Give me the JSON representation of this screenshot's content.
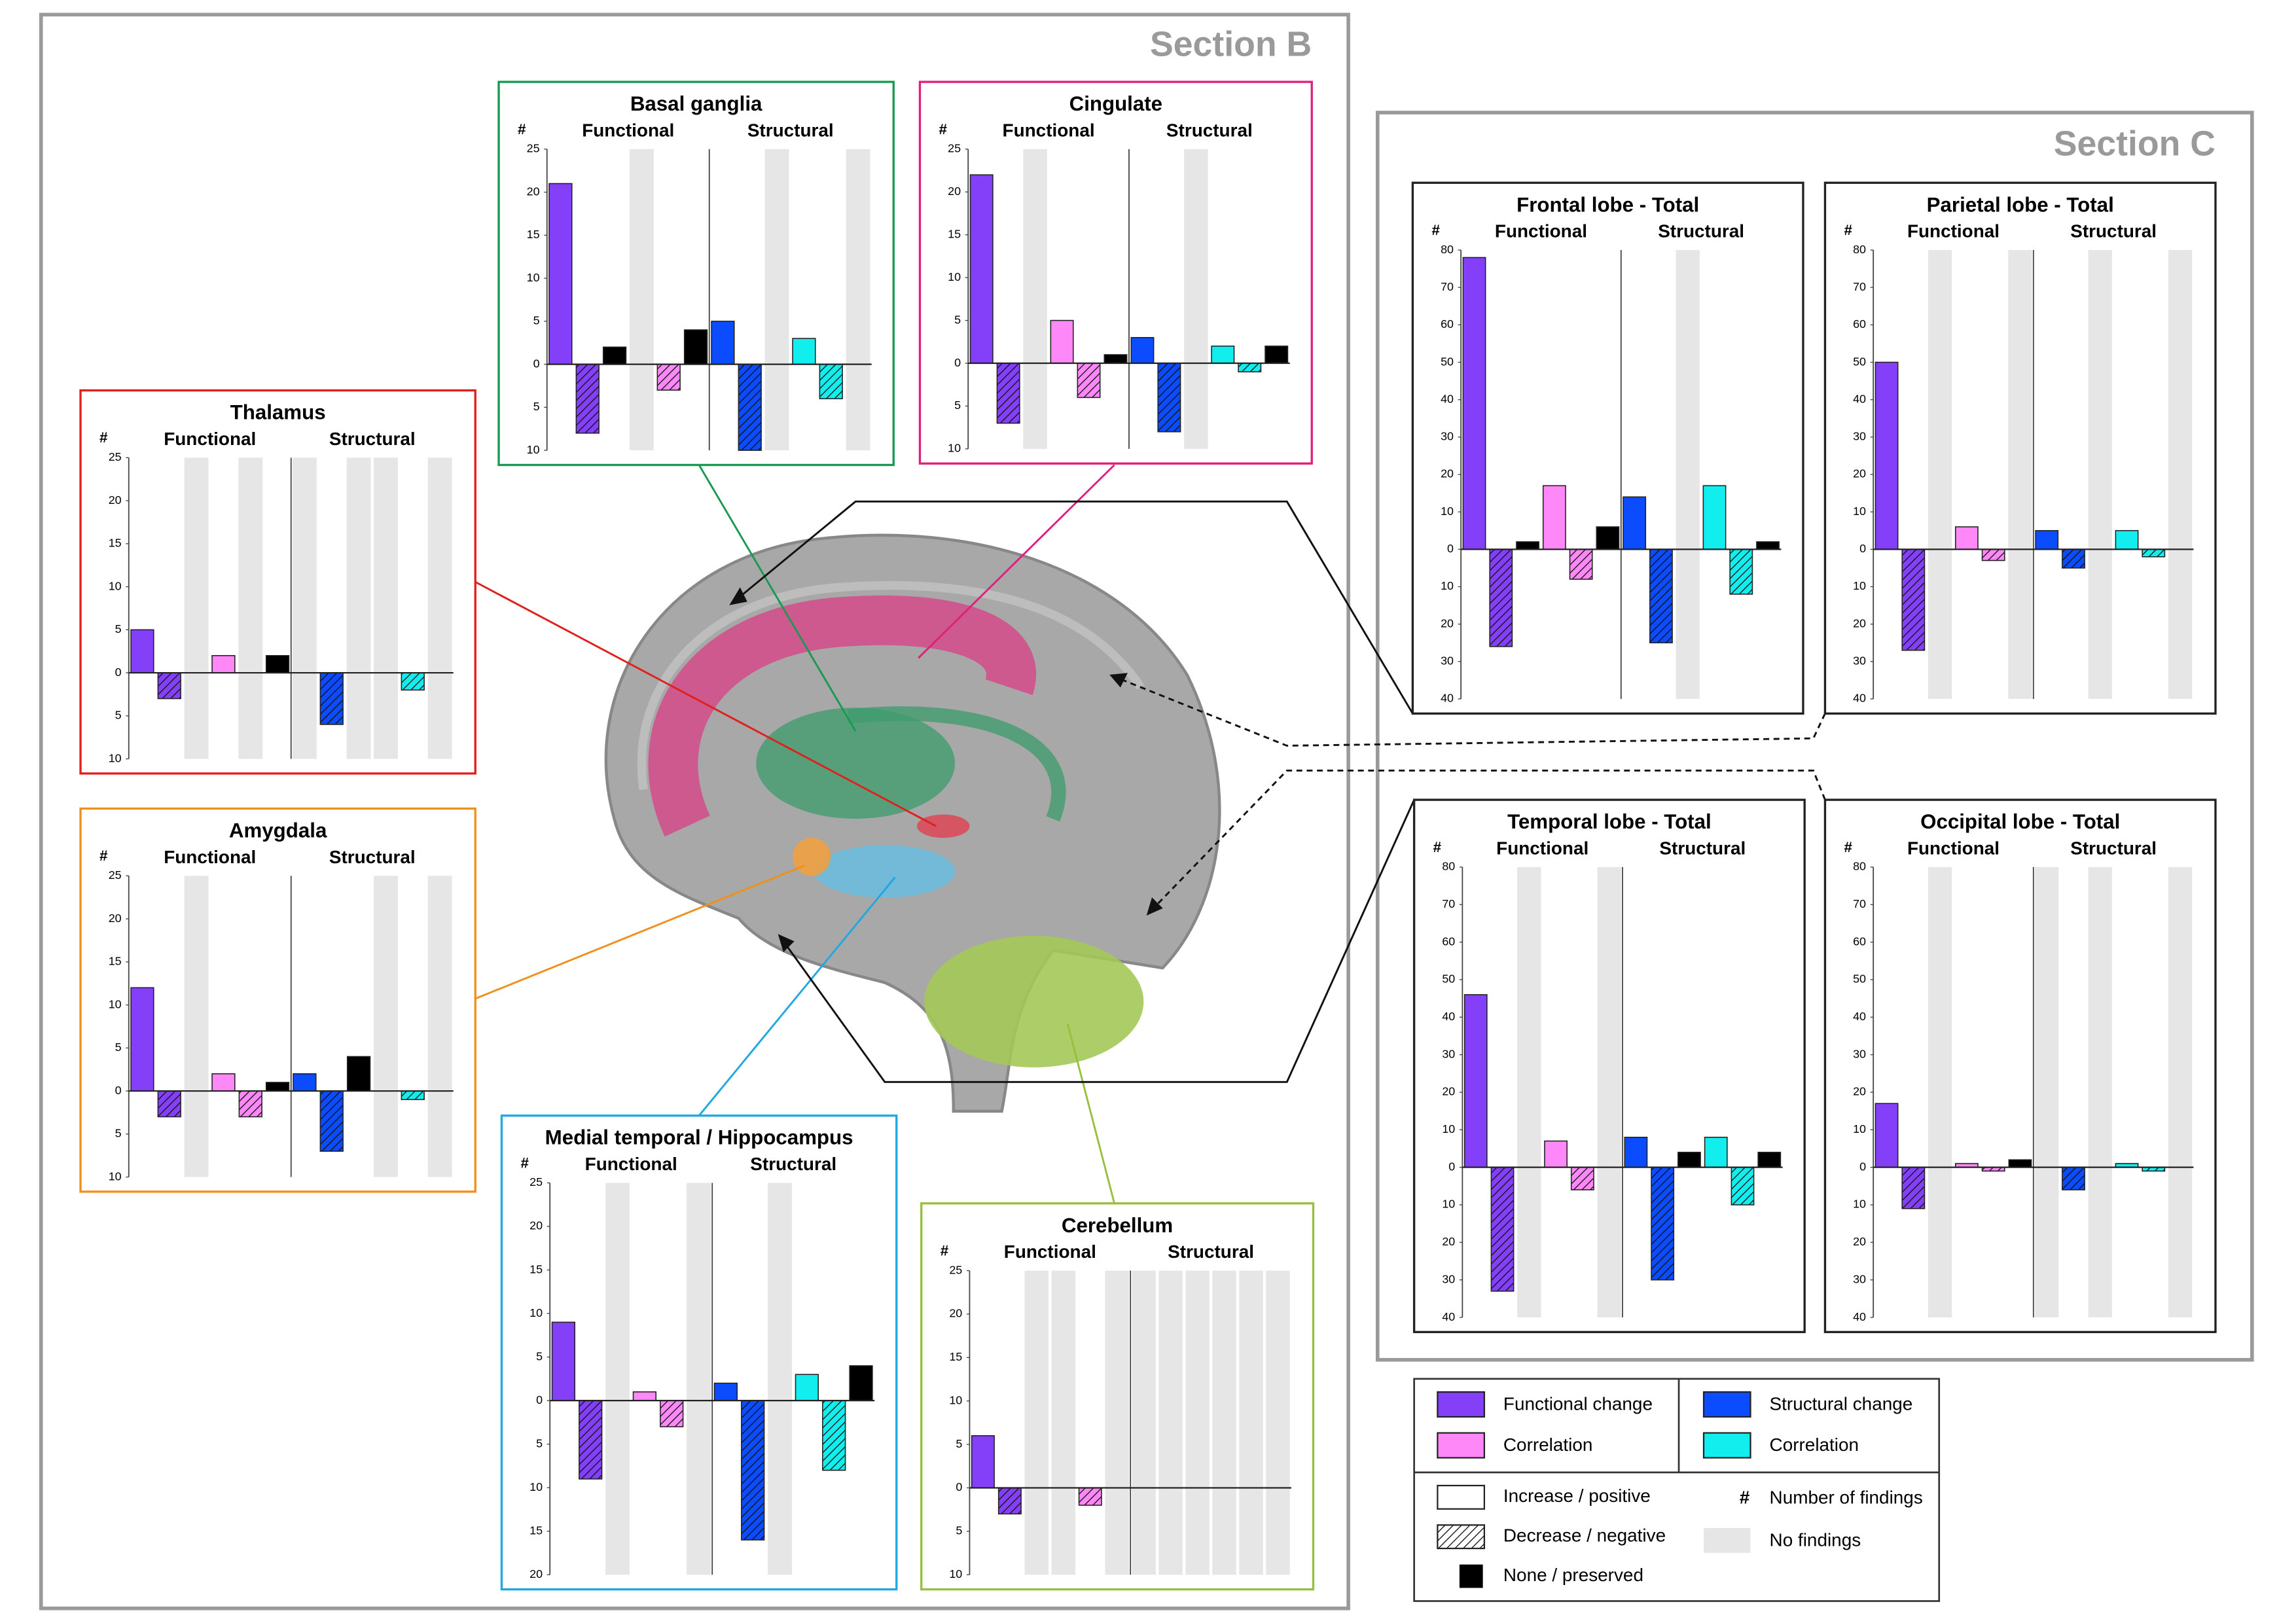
{
  "sections": [
    "Section B",
    "Section C"
  ],
  "chart_data": [
    {
      "type": "bar",
      "title": "Thalamus",
      "y_label": "#",
      "groups": [
        "Functional",
        "Structural"
      ],
      "ylim": [
        -10,
        25
      ],
      "yticks": [
        25,
        20,
        15,
        10,
        5,
        0,
        {
          "value": -5,
          "label": "5"
        },
        {
          "value": -10,
          "label": "10"
        }
      ],
      "series": [
        [
          5,
          -3,
          null
        ],
        [
          2,
          null,
          2
        ],
        [
          null,
          -6,
          null
        ],
        [
          null,
          -2,
          null
        ]
      ]
    },
    {
      "type": "bar",
      "title": "Amygdala",
      "y_label": "#",
      "groups": [
        "Functional",
        "Structural"
      ],
      "ylim": [
        -10,
        25
      ],
      "yticks": [
        25,
        20,
        15,
        10,
        5,
        0,
        {
          "value": -5,
          "label": "5"
        },
        {
          "value": -10,
          "label": "10"
        }
      ],
      "series": [
        [
          12,
          -3,
          null
        ],
        [
          2,
          -3,
          1
        ],
        [
          2,
          -7,
          4
        ],
        [
          null,
          -1,
          null
        ]
      ]
    },
    {
      "type": "bar",
      "title": "Basal ganglia",
      "y_label": "#",
      "groups": [
        "Functional",
        "Structural"
      ],
      "ylim": [
        -10,
        25
      ],
      "yticks": [
        25,
        20,
        15,
        10,
        5,
        0,
        {
          "value": -5,
          "label": "5"
        },
        {
          "value": -10,
          "label": "10"
        }
      ],
      "series": [
        [
          21,
          -8,
          2
        ],
        [
          null,
          -3,
          4
        ],
        [
          5,
          -10,
          null
        ],
        [
          3,
          -4,
          null
        ]
      ]
    },
    {
      "type": "bar",
      "title": "Cingulate",
      "y_label": "#",
      "groups": [
        "Functional",
        "Structural"
      ],
      "ylim": [
        -10,
        25
      ],
      "yticks": [
        25,
        20,
        15,
        10,
        5,
        0,
        {
          "value": -5,
          "label": "5"
        },
        {
          "value": -10,
          "label": "10"
        }
      ],
      "series": [
        [
          22,
          -7,
          null
        ],
        [
          5,
          -4,
          1
        ],
        [
          3,
          -8,
          null
        ],
        [
          2,
          -1,
          2
        ]
      ]
    },
    {
      "type": "bar",
      "title": "Medial temporal / Hippocampus",
      "y_label": "#",
      "groups": [
        "Functional",
        "Structural"
      ],
      "ylim": [
        -20,
        25
      ],
      "yticks": [
        25,
        20,
        15,
        10,
        5,
        0,
        {
          "value": -5,
          "label": "5"
        },
        {
          "value": -10,
          "label": "10"
        },
        {
          "value": -15,
          "label": "15"
        },
        {
          "value": -20,
          "label": "20"
        }
      ],
      "series": [
        [
          9,
          -9,
          null
        ],
        [
          1,
          -3,
          null
        ],
        [
          2,
          -16,
          null
        ],
        [
          3,
          -8,
          4
        ]
      ]
    },
    {
      "type": "bar",
      "title": "Cerebellum",
      "y_label": "#",
      "groups": [
        "Functional",
        "Structural"
      ],
      "ylim": [
        -10,
        25
      ],
      "yticks": [
        25,
        20,
        15,
        10,
        5,
        0,
        {
          "value": -5,
          "label": "5"
        },
        {
          "value": -10,
          "label": "10"
        }
      ],
      "series": [
        [
          6,
          -3,
          null
        ],
        [
          null,
          -2,
          null
        ],
        [
          null,
          null,
          null
        ],
        [
          null,
          null,
          null
        ]
      ]
    },
    {
      "type": "bar",
      "title": "Frontal lobe - Total",
      "y_label": "#",
      "groups": [
        "Functional",
        "Structural"
      ],
      "ylim": [
        -40,
        80
      ],
      "yticks": [
        80,
        70,
        60,
        50,
        40,
        30,
        20,
        10,
        0,
        {
          "value": -10,
          "label": "10"
        },
        {
          "value": -20,
          "label": "20"
        },
        {
          "value": -30,
          "label": "30"
        },
        {
          "value": -40,
          "label": "40"
        }
      ],
      "series": [
        [
          78,
          -26,
          2
        ],
        [
          17,
          -8,
          6
        ],
        [
          14,
          -25,
          null
        ],
        [
          17,
          -12,
          2
        ]
      ]
    },
    {
      "type": "bar",
      "title": "Parietal lobe - Total",
      "y_label": "#",
      "groups": [
        "Functional",
        "Structural"
      ],
      "ylim": [
        -40,
        80
      ],
      "yticks": [
        80,
        70,
        60,
        50,
        40,
        30,
        20,
        10,
        0,
        {
          "value": -10,
          "label": "10"
        },
        {
          "value": -20,
          "label": "20"
        },
        {
          "value": -30,
          "label": "30"
        },
        {
          "value": -40,
          "label": "40"
        }
      ],
      "series": [
        [
          50,
          -27,
          null
        ],
        [
          6,
          -3,
          null
        ],
        [
          5,
          -5,
          null
        ],
        [
          5,
          -2,
          null
        ]
      ]
    },
    {
      "type": "bar",
      "title": "Temporal lobe - Total",
      "y_label": "#",
      "groups": [
        "Functional",
        "Structural"
      ],
      "ylim": [
        -40,
        80
      ],
      "yticks": [
        80,
        70,
        60,
        50,
        40,
        30,
        20,
        10,
        0,
        {
          "value": -10,
          "label": "10"
        },
        {
          "value": -20,
          "label": "20"
        },
        {
          "value": -30,
          "label": "30"
        },
        {
          "value": -40,
          "label": "40"
        }
      ],
      "series": [
        [
          46,
          -33,
          null
        ],
        [
          7,
          -6,
          null
        ],
        [
          8,
          -30,
          4
        ],
        [
          8,
          -10,
          4
        ]
      ]
    },
    {
      "type": "bar",
      "title": "Occipital lobe - Total",
      "y_label": "#",
      "groups": [
        "Functional",
        "Structural"
      ],
      "ylim": [
        -40,
        80
      ],
      "yticks": [
        80,
        70,
        60,
        50,
        40,
        30,
        20,
        10,
        0,
        {
          "value": -10,
          "label": "10"
        },
        {
          "value": -20,
          "label": "20"
        },
        {
          "value": -30,
          "label": "30"
        },
        {
          "value": -40,
          "label": "40"
        }
      ],
      "series": [
        [
          17,
          -11,
          null
        ],
        [
          1,
          -1,
          2
        ],
        [
          null,
          -6,
          null
        ],
        [
          1,
          -1,
          null
        ]
      ]
    }
  ],
  "legend": {
    "series": [
      {
        "label": "Functional change",
        "color": "#8440f8"
      },
      {
        "label": "Correlation",
        "color": "#ff88f8"
      },
      {
        "label": "Structural change",
        "color": "#0c4cff"
      },
      {
        "label": "Correlation",
        "color": "#12eeee"
      }
    ],
    "styles": [
      "Increase / positive",
      "Decrease / negative",
      "None / preserved"
    ],
    "symbol": "#",
    "symbol_label": "Number of findings",
    "no_findings": "No findings"
  }
}
